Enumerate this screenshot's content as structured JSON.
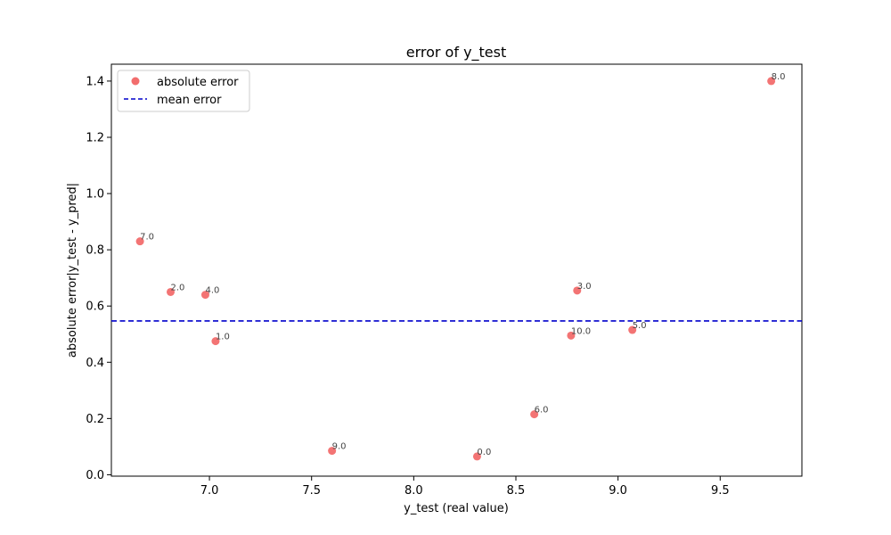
{
  "chart_data": {
    "type": "scatter",
    "title": "error of y_test",
    "xlabel": "y_test (real value)",
    "ylabel": "absolute error|y_test - y_pred|",
    "xlim": [
      6.52,
      9.9
    ],
    "ylim": [
      -0.005,
      1.46
    ],
    "xticks": [
      7.0,
      7.5,
      8.0,
      8.5,
      9.0,
      9.5
    ],
    "xtick_labels": [
      "7.0",
      "7.5",
      "8.0",
      "8.5",
      "9.0",
      "9.5"
    ],
    "yticks": [
      0.0,
      0.2,
      0.4,
      0.6,
      0.8,
      1.0,
      1.2,
      1.4
    ],
    "ytick_labels": [
      "0.0",
      "0.2",
      "0.4",
      "0.6",
      "0.8",
      "1.0",
      "1.2",
      "1.4"
    ],
    "grid": false,
    "legend_position": "top-left",
    "series": [
      {
        "name": "absolute error",
        "color": "#f26d6d",
        "points": [
          {
            "x": 6.66,
            "y": 0.83,
            "label": "7.0"
          },
          {
            "x": 6.81,
            "y": 0.65,
            "label": "2.0"
          },
          {
            "x": 6.98,
            "y": 0.64,
            "label": "4.0"
          },
          {
            "x": 7.03,
            "y": 0.475,
            "label": "1.0"
          },
          {
            "x": 7.6,
            "y": 0.085,
            "label": "9.0"
          },
          {
            "x": 8.31,
            "y": 0.065,
            "label": "0.0"
          },
          {
            "x": 8.59,
            "y": 0.215,
            "label": "6.0"
          },
          {
            "x": 8.77,
            "y": 0.495,
            "label": "10.0"
          },
          {
            "x": 8.8,
            "y": 0.655,
            "label": "3.0"
          },
          {
            "x": 9.07,
            "y": 0.515,
            "label": "5.0"
          },
          {
            "x": 9.75,
            "y": 1.4,
            "label": "8.0"
          }
        ]
      },
      {
        "name": "mean error",
        "type": "hline",
        "color": "#0000cc",
        "y": 0.547
      }
    ]
  }
}
